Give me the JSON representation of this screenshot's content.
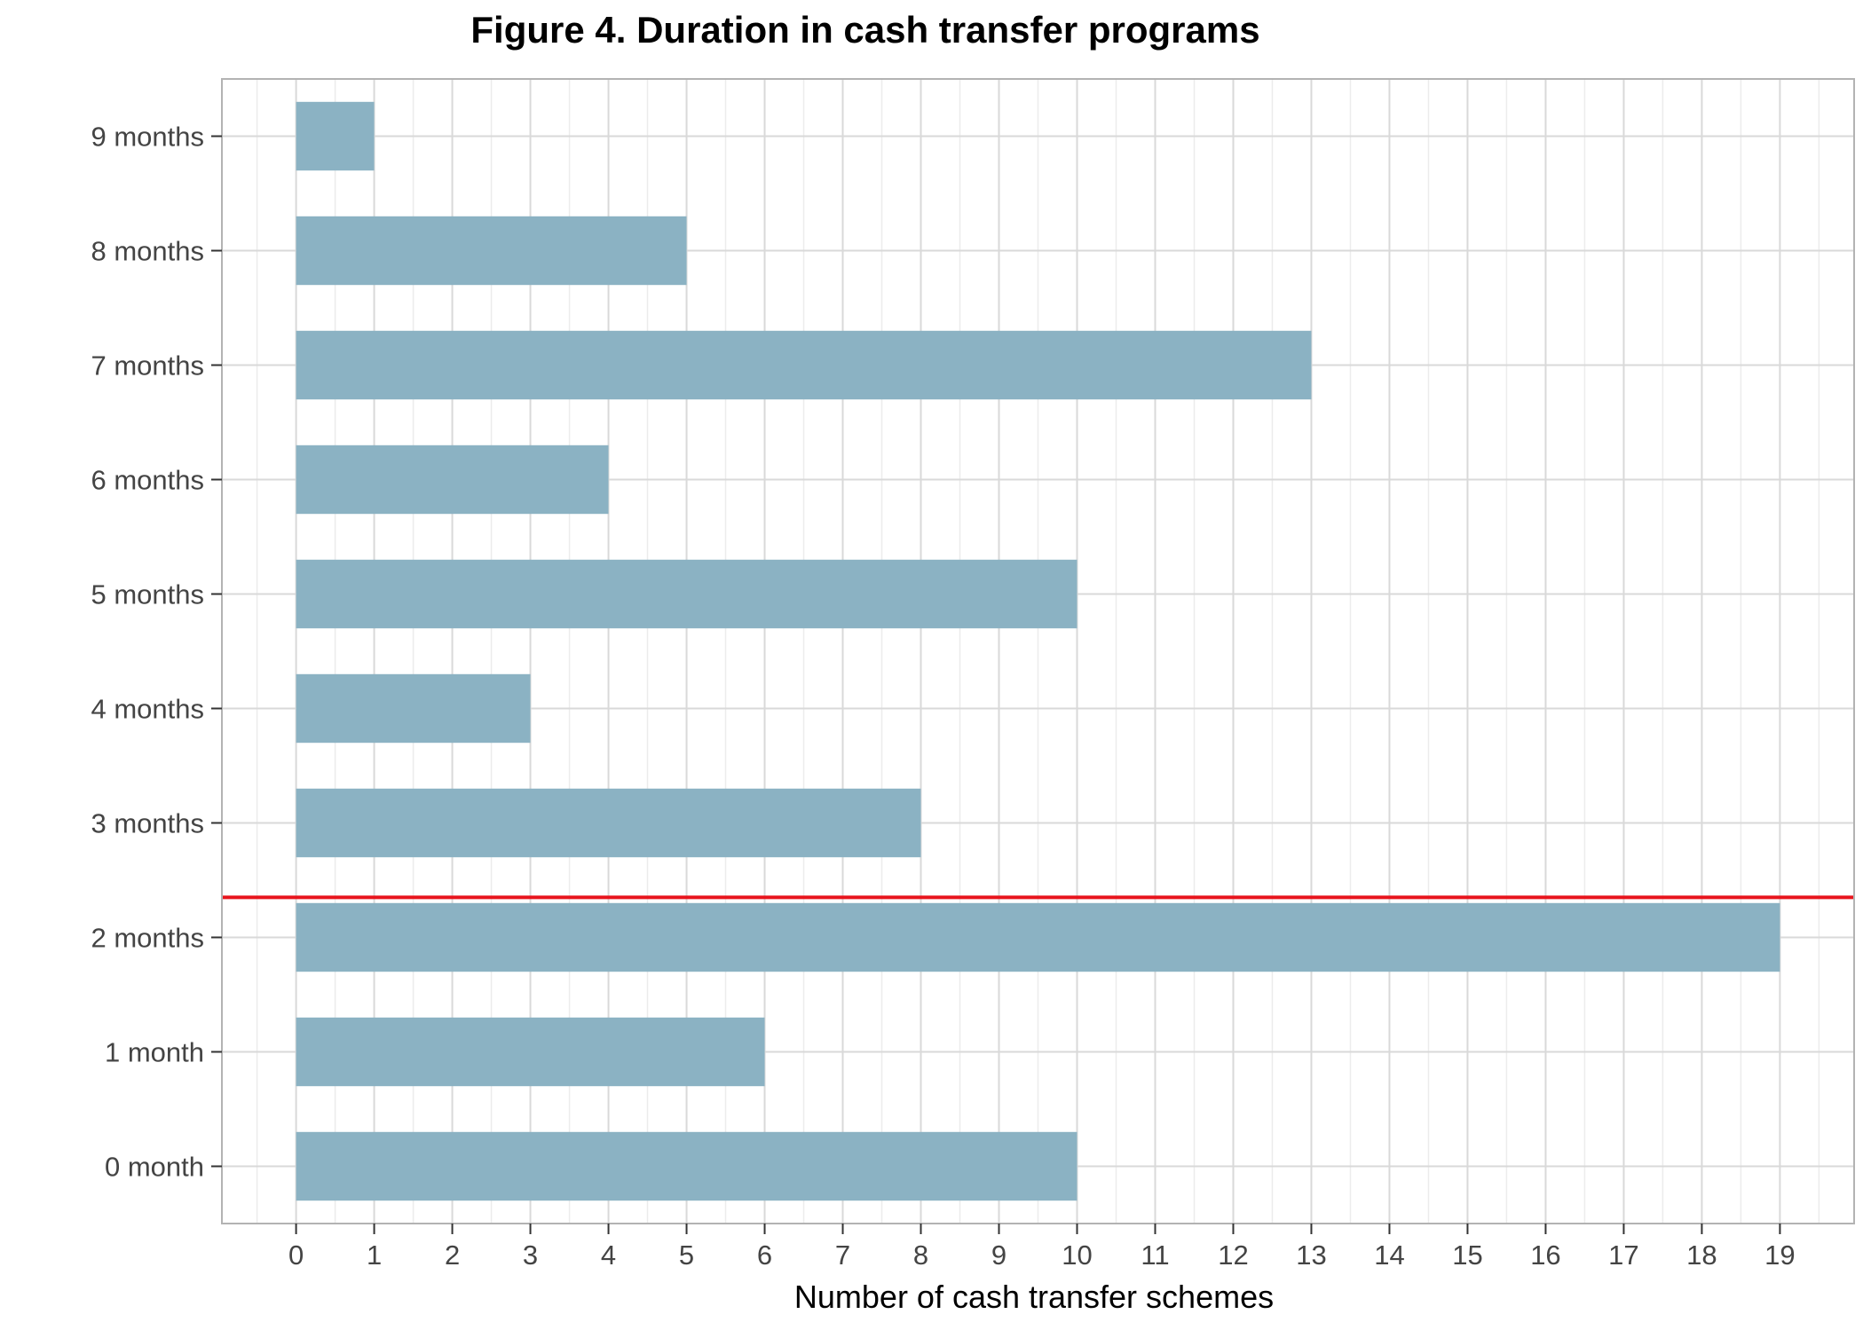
{
  "chart_data": {
    "type": "bar",
    "orientation": "horizontal",
    "title": "Figure 4. Duration in cash transfer programs",
    "xlabel": "Number of cash transfer schemes",
    "ylabel": "",
    "categories": [
      "0 month",
      "1 month",
      "2 months",
      "3 months",
      "4 months",
      "5 months",
      "6 months",
      "7 months",
      "8 months",
      "9 months"
    ],
    "values": [
      10,
      6,
      19,
      8,
      3,
      10,
      4,
      13,
      5,
      1
    ],
    "xticks": [
      "0",
      "1",
      "2",
      "3",
      "4",
      "5",
      "6",
      "7",
      "8",
      "9",
      "10",
      "11",
      "12",
      "13",
      "14",
      "15",
      "16",
      "17",
      "18",
      "19"
    ],
    "xlim": [
      -0.95,
      19.95
    ],
    "grid": true,
    "bar_color": "#8bb2c3",
    "reference_line": {
      "orientation": "horizontal",
      "category_position": 2.85,
      "color": "#e8141c"
    }
  }
}
